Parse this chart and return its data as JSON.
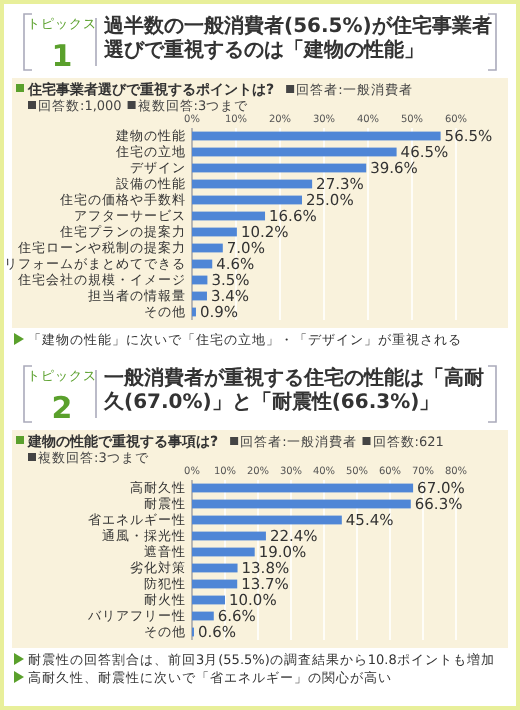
{
  "chart_data": [
    {
      "type": "bar",
      "orientation": "horizontal",
      "title": "過半数の一般消費者(56.5%)が住宅事業者選びで重視するのは「建物の性能」",
      "subtitle": "住宅事業者選びで重視するポイントは?",
      "categories": [
        "建物の性能",
        "住宅の立地",
        "デザイン",
        "設備の性能",
        "住宅の価格や手数料",
        "アフターサービス",
        "住宅プランの提案力",
        "住宅ローンや税制の提案力",
        "リフォームがまとめてできる",
        "住宅会社の規模・イメージ",
        "担当者の情報量",
        "その他"
      ],
      "values": [
        56.5,
        46.5,
        39.6,
        27.3,
        25.0,
        16.6,
        10.2,
        7.0,
        4.6,
        3.5,
        3.4,
        0.9
      ],
      "value_labels": [
        "56.5%",
        "46.5%",
        "39.6%",
        "27.3%",
        "25.0%",
        "16.6%",
        "10.2%",
        "7.0%",
        "4.6%",
        "3.5%",
        "3.4%",
        "0.9%"
      ],
      "color": "#4f86d6",
      "xlim": [
        0,
        60
      ],
      "xticks": [
        {
          "value": 0,
          "label": "0%"
        },
        {
          "value": 10,
          "label": "10%"
        },
        {
          "value": 20,
          "label": "20%"
        },
        {
          "value": 30,
          "label": "30%"
        },
        {
          "value": 40,
          "label": "40%"
        },
        {
          "value": 50,
          "label": "50%"
        },
        {
          "value": 60,
          "label": "60%"
        }
      ],
      "grid": "x",
      "annotations": [
        "トピックス",
        "1",
        "回答者:一般消費者",
        "回答数:1,000",
        "複数回答:3つまで",
        "「建物の性能」に次いで「住宅の立地」・「デザイン」が重視される"
      ]
    },
    {
      "type": "bar",
      "orientation": "horizontal",
      "title": "一般消費者が重視する住宅の性能は「高耐久(67.0%)」と「耐震性(66.3%)」",
      "subtitle": "建物の性能で重視する事項は?",
      "categories": [
        "高耐久性",
        "耐震性",
        "省エネルギー性",
        "通風・採光性",
        "遮音性",
        "劣化対策",
        "防犯性",
        "耐火性",
        "バリアフリー性",
        "その他"
      ],
      "values": [
        67.0,
        66.3,
        45.4,
        22.4,
        19.0,
        13.8,
        13.7,
        10.0,
        6.6,
        0.6
      ],
      "value_labels": [
        "67.0%",
        "66.3%",
        "45.4%",
        "22.4%",
        "19.0%",
        "13.8%",
        "13.7%",
        "10.0%",
        "6.6%",
        "0.6%"
      ],
      "color": "#4f86d6",
      "xlim": [
        0,
        80
      ],
      "xticks": [
        {
          "value": 0,
          "label": "0%"
        },
        {
          "value": 10,
          "label": "10%"
        },
        {
          "value": 20,
          "label": "20%"
        },
        {
          "value": 30,
          "label": "30%"
        },
        {
          "value": 40,
          "label": "40%"
        },
        {
          "value": 50,
          "label": "50%"
        },
        {
          "value": 60,
          "label": "60%"
        },
        {
          "value": 70,
          "label": "70%"
        },
        {
          "value": 80,
          "label": "80%"
        }
      ],
      "grid": "x",
      "annotations": [
        "トピックス",
        "2",
        "回答者:一般消費者",
        "回答数:621",
        "複数回答:3つまで",
        "耐震性の回答割合は、前回3月(55.5%)の調査結果から10.8ポイントも増加",
        "高耐久性、耐震性に次いで「省エネルギー」の関心が高い"
      ]
    }
  ]
}
